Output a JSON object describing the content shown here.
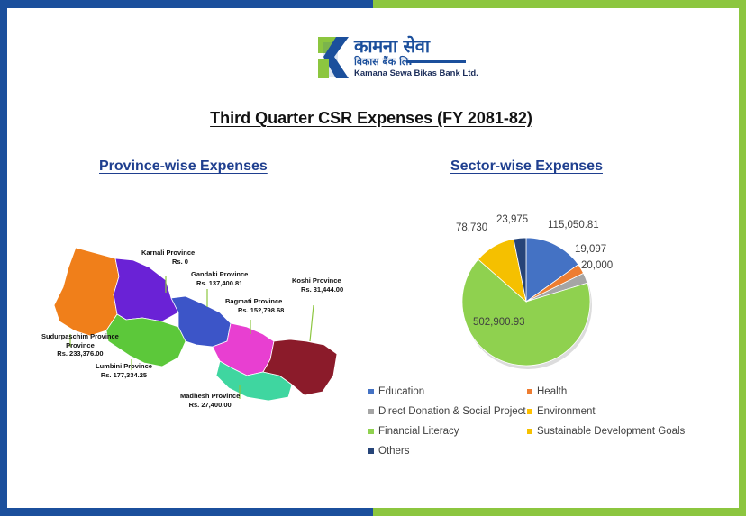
{
  "logo": {
    "main_text": "कामना सेवा",
    "sub_text": "विकास बैंक लि.",
    "name": "Kamana Sewa Bikas Bank Ltd.",
    "colors": {
      "blue": "#1b4f9c",
      "green": "#8cc63f"
    }
  },
  "title": "Third Quarter CSR Expenses (FY 2081-82)",
  "province_section": {
    "title": "Province-wise Expenses",
    "provinces": [
      {
        "name": "Karnali Province",
        "amount": "Rs. 0",
        "color": "#6a22d6"
      },
      {
        "name": "Gandaki Province",
        "amount": "Rs. 137,400.81",
        "color": "#3c55c8"
      },
      {
        "name": "Bagmati Province",
        "amount": "Rs. 152,798.68",
        "color": "#e83fd1"
      },
      {
        "name": "Koshi Province",
        "amount": "Rs. 31,444.00",
        "color": "#8b1b2a"
      },
      {
        "name": "Sudurpaschim Province",
        "amount": "Rs. 233,376.00",
        "color": "#f07f1a"
      },
      {
        "name": "Lumbini Province",
        "amount": "Rs. 177,334.25",
        "color": "#5cc83a"
      },
      {
        "name": "Madhesh Province",
        "amount": "Rs. 27,400.00",
        "color": "#3fd6a0"
      }
    ]
  },
  "sector_section": {
    "title": "Sector-wise Expenses"
  },
  "chart_data": {
    "type": "pie",
    "title": "Sector-wise Expenses",
    "slices": [
      {
        "label": "Education",
        "value": 115050.81,
        "display": "115,050.81",
        "color": "#4472c4"
      },
      {
        "label": "Health",
        "value": 19097,
        "display": "19,097",
        "color": "#ed7d31"
      },
      {
        "label": "Direct Donation & Social Project",
        "value": 20000,
        "display": "20,000",
        "color": "#a5a5a5"
      },
      {
        "label": "Environment",
        "value": 0,
        "display": "",
        "color": "#ffc000"
      },
      {
        "label": "Financial Literacy",
        "value": 502900.93,
        "display": "502,900.93",
        "color": "#8fd14f"
      },
      {
        "label": "Sustainable Development Goals",
        "value": 78730,
        "display": "78,730",
        "color": "#f5c000"
      },
      {
        "label": "Others",
        "value": 23975,
        "display": "23,975",
        "color": "#264478"
      }
    ],
    "legend_position": "bottom"
  }
}
